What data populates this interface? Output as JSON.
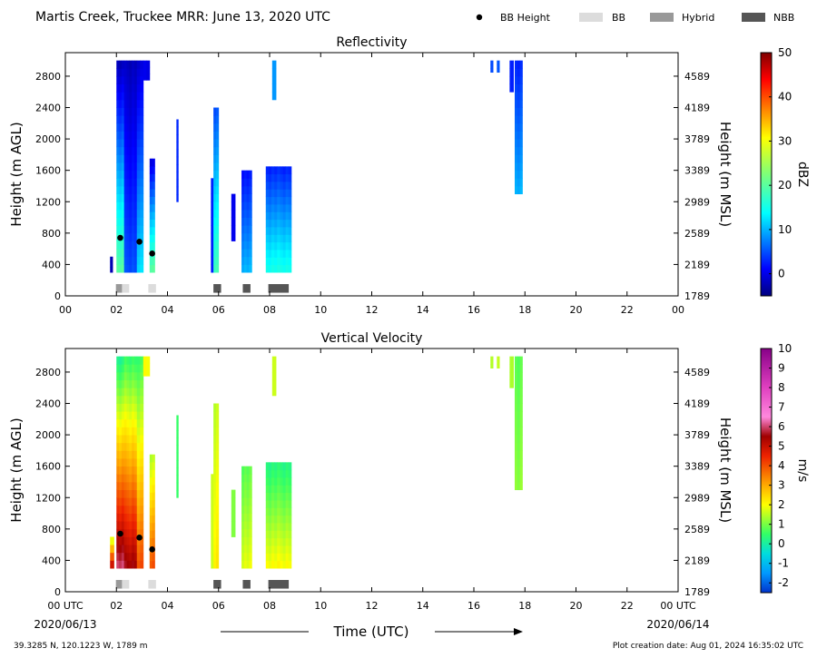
{
  "header": {
    "title": "Martis Creek, Truckee MRR:  June 13, 2020 UTC",
    "legend": [
      {
        "label": "BB Height",
        "kind": "dot",
        "color": "#000000"
      },
      {
        "label": "BB",
        "kind": "box",
        "color": "#dcdcdc"
      },
      {
        "label": "Hybrid",
        "kind": "box",
        "color": "#999999"
      },
      {
        "label": "NBB",
        "kind": "box",
        "color": "#555555"
      }
    ]
  },
  "footer": {
    "coords": "39.3285 N, 120.1223 W, 1789 m",
    "creation": "Plot creation date: Aug 01, 2024 16:35:02 UTC",
    "xlabel": "Time (UTC)",
    "start_date": "2020/06/13",
    "end_date": "2020/06/14"
  },
  "chart_data": [
    {
      "type": "heatmap",
      "title": "Reflectivity",
      "ylabel": "Height (m AGL)",
      "ylabel_right": "Height (m MSL)",
      "x_ticks": [
        "00",
        "02",
        "04",
        "06",
        "08",
        "10",
        "12",
        "14",
        "16",
        "18",
        "20",
        "22",
        "00"
      ],
      "x_range": [
        0,
        24
      ],
      "y_range": [
        0,
        3100
      ],
      "y_ticks": [
        0,
        400,
        800,
        1200,
        1600,
        2000,
        2400,
        2800
      ],
      "y_ticks_right": [
        "1789",
        "2189",
        "2589",
        "2989",
        "3389",
        "3789",
        "4189",
        "4589"
      ],
      "colorbar": {
        "label": "dBZ",
        "range": [
          -5,
          50
        ],
        "ticks": [
          0,
          10,
          20,
          30,
          40,
          50
        ]
      },
      "bb_height_points": [
        {
          "x": 2.15,
          "y": 740
        },
        {
          "x": 2.9,
          "y": 690
        },
        {
          "x": 3.4,
          "y": 540
        }
      ],
      "bb_classification": [
        {
          "start": 1.98,
          "end": 2.22,
          "class": "Hybrid"
        },
        {
          "start": 2.22,
          "end": 2.5,
          "class": "BB"
        },
        {
          "start": 3.25,
          "end": 3.55,
          "class": "BB"
        },
        {
          "start": 5.8,
          "end": 6.1,
          "class": "NBB"
        },
        {
          "start": 6.95,
          "end": 7.25,
          "class": "NBB"
        },
        {
          "start": 7.95,
          "end": 8.75,
          "class": "NBB"
        }
      ],
      "echo_columns": [
        {
          "t0": 1.75,
          "t1": 1.85,
          "h0": 300,
          "h1": 500,
          "v0": -2,
          "v1": -2
        },
        {
          "t0": 2.0,
          "t1": 2.3,
          "h0": 300,
          "h1": 3000,
          "v0": 20,
          "v1": -2
        },
        {
          "t0": 2.3,
          "t1": 2.8,
          "h0": 300,
          "h1": 3000,
          "v0": 5,
          "v1": -2
        },
        {
          "t0": 2.8,
          "t1": 3.05,
          "h0": 300,
          "h1": 3000,
          "v0": 12,
          "v1": -1
        },
        {
          "t0": 3.05,
          "t1": 3.3,
          "h0": 2750,
          "h1": 3000,
          "v0": 0,
          "v1": 0
        },
        {
          "t0": 3.3,
          "t1": 3.5,
          "h0": 300,
          "h1": 1750,
          "v0": 20,
          "v1": 0
        },
        {
          "t0": 4.35,
          "t1": 4.42,
          "h0": 1200,
          "h1": 2250,
          "v0": 3,
          "v1": 3
        },
        {
          "t0": 5.7,
          "t1": 5.8,
          "h0": 300,
          "h1": 1500,
          "v0": 2,
          "v1": 2
        },
        {
          "t0": 5.8,
          "t1": 6.0,
          "h0": 300,
          "h1": 2400,
          "v0": 18,
          "v1": 5
        },
        {
          "t0": 6.5,
          "t1": 6.65,
          "h0": 700,
          "h1": 1300,
          "v0": 0,
          "v1": 0
        },
        {
          "t0": 6.9,
          "t1": 7.3,
          "h0": 300,
          "h1": 1600,
          "v0": 10,
          "v1": 2
        },
        {
          "t0": 7.85,
          "t1": 8.85,
          "h0": 300,
          "h1": 1650,
          "v0": 15,
          "v1": 3
        },
        {
          "t0": 8.1,
          "t1": 8.25,
          "h0": 2500,
          "h1": 3000,
          "v0": 8,
          "v1": 8
        },
        {
          "t0": 16.65,
          "t1": 16.75,
          "h0": 2850,
          "h1": 3000,
          "v0": 5,
          "v1": 5
        },
        {
          "t0": 16.9,
          "t1": 17.0,
          "h0": 2850,
          "h1": 3000,
          "v0": 5,
          "v1": 5
        },
        {
          "t0": 17.4,
          "t1": 17.55,
          "h0": 2600,
          "h1": 3000,
          "v0": 3,
          "v1": 3
        },
        {
          "t0": 17.6,
          "t1": 17.9,
          "h0": 1300,
          "h1": 3000,
          "v0": 10,
          "v1": 3
        }
      ]
    },
    {
      "type": "heatmap",
      "title": "Vertical Velocity",
      "ylabel": "Height (m AGL)",
      "ylabel_right": "Height (m MSL)",
      "x_ticks": [
        "00 UTC",
        "02",
        "04",
        "06",
        "08",
        "10",
        "12",
        "14",
        "16",
        "18",
        "20",
        "22",
        "00 UTC"
      ],
      "x_range": [
        0,
        24
      ],
      "y_range": [
        0,
        3100
      ],
      "y_ticks": [
        0,
        400,
        800,
        1200,
        1600,
        2000,
        2400,
        2800
      ],
      "y_ticks_right": [
        "1789",
        "2189",
        "2589",
        "2989",
        "3389",
        "3789",
        "4189",
        "4589"
      ],
      "colorbar": {
        "label": "m/s",
        "range": [
          -2.5,
          10
        ],
        "ticks": [
          -2,
          -1,
          0,
          1,
          2,
          3,
          4,
          5,
          6,
          7,
          8,
          9,
          10
        ]
      },
      "bb_height_points": [
        {
          "x": 2.15,
          "y": 740
        },
        {
          "x": 2.9,
          "y": 690
        },
        {
          "x": 3.4,
          "y": 540
        }
      ],
      "bb_classification": [
        {
          "start": 1.98,
          "end": 2.22,
          "class": "Hybrid"
        },
        {
          "start": 2.22,
          "end": 2.5,
          "class": "BB"
        },
        {
          "start": 3.25,
          "end": 3.55,
          "class": "BB"
        },
        {
          "start": 5.8,
          "end": 6.1,
          "class": "NBB"
        },
        {
          "start": 6.95,
          "end": 7.25,
          "class": "NBB"
        },
        {
          "start": 7.95,
          "end": 8.75,
          "class": "NBB"
        }
      ],
      "echo_columns": [
        {
          "t0": 1.75,
          "t1": 1.9,
          "h0": 300,
          "h1": 700,
          "v0": 5,
          "v1": 2
        },
        {
          "t0": 2.0,
          "t1": 2.3,
          "h0": 300,
          "h1": 3000,
          "v0": 6,
          "v1": 0.2
        },
        {
          "t0": 2.3,
          "t1": 2.8,
          "h0": 300,
          "h1": 3000,
          "v0": 5.5,
          "v1": 0.5
        },
        {
          "t0": 2.8,
          "t1": 3.05,
          "h0": 300,
          "h1": 3000,
          "v0": 4,
          "v1": 0.5
        },
        {
          "t0": 3.05,
          "t1": 3.3,
          "h0": 2750,
          "h1": 3000,
          "v0": 2,
          "v1": 2
        },
        {
          "t0": 3.3,
          "t1": 3.5,
          "h0": 300,
          "h1": 1750,
          "v0": 4,
          "v1": 1.5
        },
        {
          "t0": 4.35,
          "t1": 4.42,
          "h0": 1200,
          "h1": 2250,
          "v0": 0.5,
          "v1": 0.5
        },
        {
          "t0": 5.7,
          "t1": 5.8,
          "h0": 300,
          "h1": 1500,
          "v0": 1.5,
          "v1": 1.5
        },
        {
          "t0": 5.8,
          "t1": 6.0,
          "h0": 300,
          "h1": 2400,
          "v0": 2.2,
          "v1": 1.5
        },
        {
          "t0": 6.5,
          "t1": 6.65,
          "h0": 700,
          "h1": 1300,
          "v0": 1,
          "v1": 1
        },
        {
          "t0": 6.9,
          "t1": 7.3,
          "h0": 300,
          "h1": 1600,
          "v0": 1.8,
          "v1": 0.8
        },
        {
          "t0": 7.85,
          "t1": 8.85,
          "h0": 300,
          "h1": 1650,
          "v0": 2,
          "v1": 0.3
        },
        {
          "t0": 8.1,
          "t1": 8.25,
          "h0": 2500,
          "h1": 3000,
          "v0": 1.5,
          "v1": 1.5
        },
        {
          "t0": 16.65,
          "t1": 16.75,
          "h0": 2850,
          "h1": 3000,
          "v0": 1.5,
          "v1": 1.5
        },
        {
          "t0": 16.9,
          "t1": 17.0,
          "h0": 2850,
          "h1": 3000,
          "v0": 1.5,
          "v1": 1.5
        },
        {
          "t0": 17.4,
          "t1": 17.55,
          "h0": 2600,
          "h1": 3000,
          "v0": 1.5,
          "v1": 1.5
        },
        {
          "t0": 17.6,
          "t1": 17.9,
          "h0": 1300,
          "h1": 3000,
          "v0": 1.2,
          "v1": 0.8
        }
      ]
    }
  ]
}
